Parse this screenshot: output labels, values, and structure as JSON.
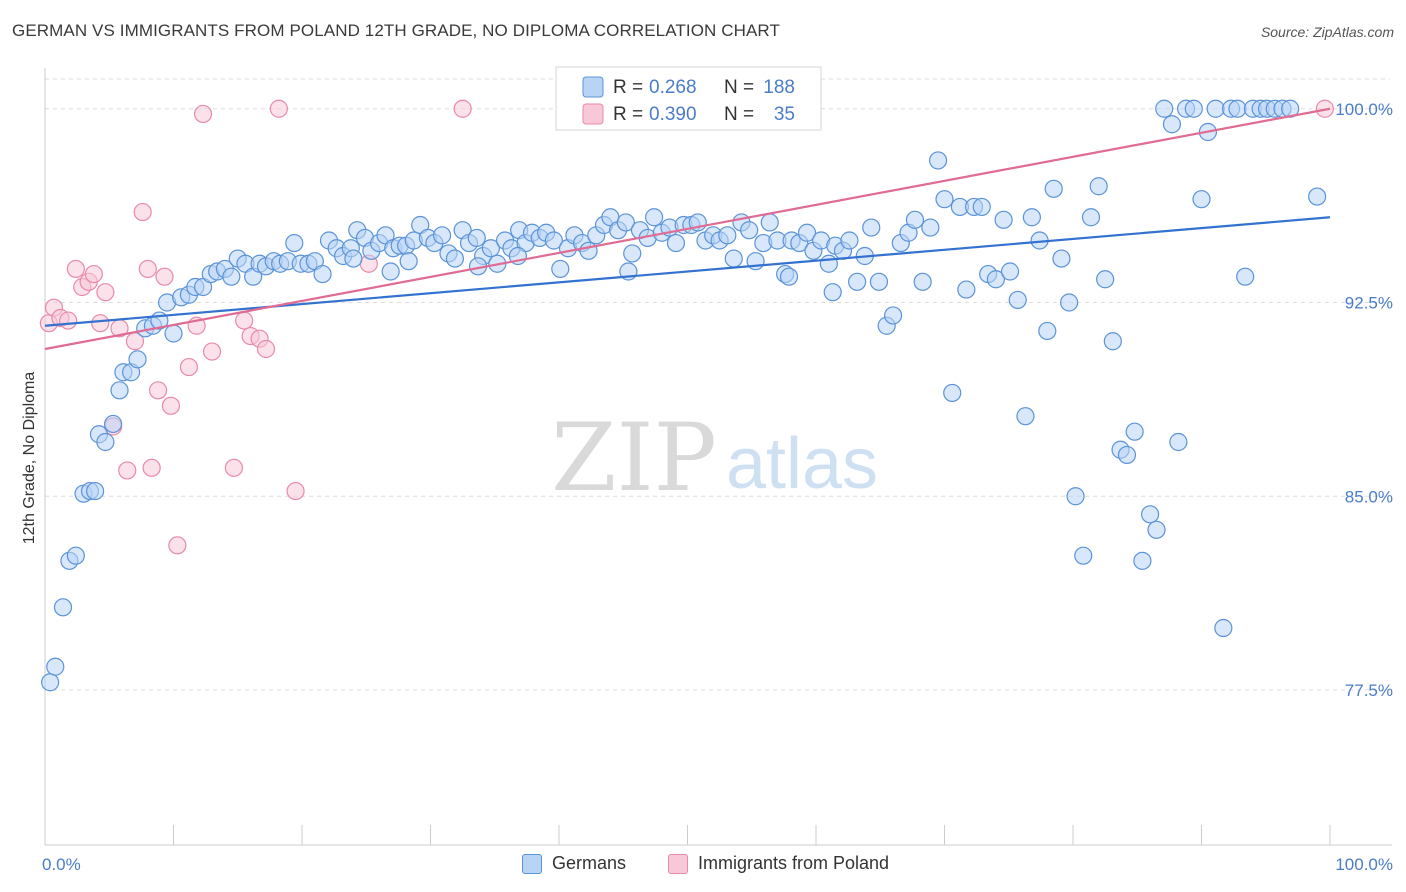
{
  "title": "GERMAN VS IMMIGRANTS FROM POLAND 12TH GRADE, NO DIPLOMA CORRELATION CHART",
  "source": "Source: ZipAtlas.com",
  "watermark": {
    "zip": "ZIP",
    "atlas": "atlas"
  },
  "colors": {
    "blue_fill": "#b8d4f5",
    "blue_stroke": "#5b93d8",
    "blue_line": "#3472d0",
    "pink_fill": "#f8c8d8",
    "pink_stroke": "#e88aa8",
    "pink_line": "#e06b93",
    "tick_label": "#4a7cc8",
    "grid": "#dddddd"
  },
  "legend": {
    "rows": [
      {
        "r_label": "R =",
        "r_value": "0.268",
        "n_label": "N =",
        "n_value": "188",
        "series": "blue"
      },
      {
        "r_label": "R =",
        "r_value": "0.390",
        "n_label": "N =",
        "n_value": "35",
        "series": "pink"
      }
    ]
  },
  "chart_data": {
    "type": "scatter",
    "title": "GERMAN VS IMMIGRANTS FROM POLAND 12TH GRADE, NO DIPLOMA CORRELATION CHART",
    "xlabel": "",
    "ylabel": "12th Grade, No Diploma",
    "xlim": [
      0,
      100
    ],
    "ylim": [
      71.5,
      101.5
    ],
    "x_tick_labels": [
      "0.0%",
      "100.0%"
    ],
    "y_ticks": [
      77.5,
      85.0,
      92.5,
      100.0
    ],
    "y_tick_labels": [
      "77.5%",
      "85.0%",
      "92.5%",
      "100.0%"
    ],
    "grid": true,
    "legend_position": "top-center",
    "series": [
      {
        "name": "Germans",
        "color": "blue",
        "trend": {
          "x": [
            0,
            100
          ],
          "y": [
            91.6,
            95.8
          ]
        },
        "points": [
          [
            0.4,
            77.8
          ],
          [
            0.8,
            78.4
          ],
          [
            1.4,
            80.7
          ],
          [
            1.9,
            82.5
          ],
          [
            2.4,
            82.7
          ],
          [
            3.0,
            85.1
          ],
          [
            3.5,
            85.2
          ],
          [
            3.9,
            85.2
          ],
          [
            4.2,
            87.4
          ],
          [
            4.7,
            87.1
          ],
          [
            5.3,
            87.8
          ],
          [
            5.8,
            89.1
          ],
          [
            6.1,
            89.8
          ],
          [
            6.7,
            89.8
          ],
          [
            7.2,
            90.3
          ],
          [
            7.8,
            91.5
          ],
          [
            8.4,
            91.6
          ],
          [
            8.9,
            91.8
          ],
          [
            9.5,
            92.5
          ],
          [
            10.0,
            91.3
          ],
          [
            10.6,
            92.7
          ],
          [
            11.2,
            92.8
          ],
          [
            11.7,
            93.1
          ],
          [
            12.3,
            93.1
          ],
          [
            12.9,
            93.6
          ],
          [
            13.4,
            93.7
          ],
          [
            14.0,
            93.8
          ],
          [
            14.5,
            93.5
          ],
          [
            15.0,
            94.2
          ],
          [
            15.6,
            94.0
          ],
          [
            16.2,
            93.5
          ],
          [
            16.7,
            94.0
          ],
          [
            17.2,
            93.9
          ],
          [
            17.8,
            94.1
          ],
          [
            18.3,
            94.0
          ],
          [
            18.9,
            94.1
          ],
          [
            19.4,
            94.8
          ],
          [
            19.9,
            94.0
          ],
          [
            20.5,
            94.0
          ],
          [
            21.0,
            94.1
          ],
          [
            21.6,
            93.6
          ],
          [
            22.1,
            94.9
          ],
          [
            22.7,
            94.6
          ],
          [
            23.2,
            94.3
          ],
          [
            23.8,
            94.6
          ],
          [
            24.3,
            95.3
          ],
          [
            24.9,
            95.0
          ],
          [
            25.4,
            94.5
          ],
          [
            26.0,
            94.8
          ],
          [
            26.5,
            95.1
          ],
          [
            27.1,
            94.6
          ],
          [
            27.6,
            94.7
          ],
          [
            28.1,
            94.7
          ],
          [
            28.7,
            94.9
          ],
          [
            29.2,
            95.5
          ],
          [
            29.8,
            95.0
          ],
          [
            30.3,
            94.8
          ],
          [
            30.9,
            95.1
          ],
          [
            31.4,
            94.4
          ],
          [
            31.9,
            94.2
          ],
          [
            32.5,
            95.3
          ],
          [
            33.0,
            94.8
          ],
          [
            33.6,
            95.0
          ],
          [
            34.1,
            94.3
          ],
          [
            34.7,
            94.6
          ],
          [
            35.2,
            94.0
          ],
          [
            35.8,
            94.9
          ],
          [
            36.3,
            94.6
          ],
          [
            36.9,
            95.3
          ],
          [
            37.4,
            94.8
          ],
          [
            37.9,
            95.2
          ],
          [
            38.5,
            95.0
          ],
          [
            39.0,
            95.2
          ],
          [
            39.6,
            94.9
          ],
          [
            40.1,
            93.8
          ],
          [
            40.7,
            94.6
          ],
          [
            41.2,
            95.1
          ],
          [
            41.8,
            94.8
          ],
          [
            42.3,
            94.5
          ],
          [
            42.9,
            95.1
          ],
          [
            43.5,
            95.5
          ],
          [
            44.0,
            95.8
          ],
          [
            44.6,
            95.3
          ],
          [
            45.2,
            95.6
          ],
          [
            45.7,
            94.4
          ],
          [
            46.3,
            95.3
          ],
          [
            46.9,
            95.0
          ],
          [
            47.4,
            95.8
          ],
          [
            48.0,
            95.2
          ],
          [
            48.6,
            95.4
          ],
          [
            49.1,
            94.8
          ],
          [
            49.7,
            95.5
          ],
          [
            50.3,
            95.5
          ],
          [
            50.8,
            95.6
          ],
          [
            51.4,
            94.9
          ],
          [
            52.0,
            95.1
          ],
          [
            52.5,
            94.9
          ],
          [
            53.1,
            95.1
          ],
          [
            53.6,
            94.2
          ],
          [
            54.2,
            95.6
          ],
          [
            54.8,
            95.3
          ],
          [
            55.3,
            94.1
          ],
          [
            55.9,
            94.8
          ],
          [
            56.4,
            95.6
          ],
          [
            57.0,
            94.9
          ],
          [
            57.6,
            93.6
          ],
          [
            58.1,
            94.9
          ],
          [
            58.7,
            94.8
          ],
          [
            59.3,
            95.2
          ],
          [
            59.8,
            94.5
          ],
          [
            60.4,
            94.9
          ],
          [
            61.0,
            94.0
          ],
          [
            61.5,
            94.7
          ],
          [
            62.1,
            94.5
          ],
          [
            62.6,
            94.9
          ],
          [
            63.2,
            93.3
          ],
          [
            63.8,
            94.3
          ],
          [
            64.3,
            95.4
          ],
          [
            64.9,
            93.3
          ],
          [
            65.5,
            91.6
          ],
          [
            66.0,
            92.0
          ],
          [
            66.6,
            94.8
          ],
          [
            67.2,
            95.2
          ],
          [
            67.7,
            95.7
          ],
          [
            68.3,
            93.3
          ],
          [
            68.9,
            95.4
          ],
          [
            69.5,
            98.0
          ],
          [
            70.0,
            96.5
          ],
          [
            70.6,
            89.0
          ],
          [
            71.2,
            96.2
          ],
          [
            71.7,
            93.0
          ],
          [
            72.3,
            96.2
          ],
          [
            72.9,
            96.2
          ],
          [
            73.4,
            93.6
          ],
          [
            74.0,
            93.4
          ],
          [
            74.6,
            95.7
          ],
          [
            75.1,
            93.7
          ],
          [
            75.7,
            92.6
          ],
          [
            76.3,
            88.1
          ],
          [
            76.8,
            95.8
          ],
          [
            77.4,
            94.9
          ],
          [
            78.0,
            91.4
          ],
          [
            78.5,
            96.9
          ],
          [
            79.1,
            94.2
          ],
          [
            79.7,
            92.5
          ],
          [
            80.2,
            85.0
          ],
          [
            80.8,
            82.7
          ],
          [
            81.4,
            95.8
          ],
          [
            82.0,
            97.0
          ],
          [
            82.5,
            93.4
          ],
          [
            83.1,
            91.0
          ],
          [
            83.7,
            86.8
          ],
          [
            84.2,
            86.6
          ],
          [
            84.8,
            87.5
          ],
          [
            85.4,
            82.5
          ],
          [
            86.0,
            84.3
          ],
          [
            86.5,
            83.7
          ],
          [
            87.1,
            100.0
          ],
          [
            87.7,
            99.4
          ],
          [
            88.2,
            87.1
          ],
          [
            88.8,
            100.0
          ],
          [
            89.4,
            100.0
          ],
          [
            90.0,
            96.5
          ],
          [
            90.5,
            99.1
          ],
          [
            91.1,
            100.0
          ],
          [
            91.7,
            79.9
          ],
          [
            92.3,
            100.0
          ],
          [
            92.8,
            100.0
          ],
          [
            93.4,
            93.5
          ],
          [
            94.0,
            100.0
          ],
          [
            94.6,
            100.0
          ],
          [
            95.1,
            100.0
          ],
          [
            95.7,
            100.0
          ],
          [
            96.3,
            100.0
          ],
          [
            96.9,
            100.0
          ],
          [
            99.0,
            96.6
          ],
          [
            57.9,
            93.5
          ],
          [
            61.3,
            92.9
          ],
          [
            45.4,
            93.7
          ],
          [
            36.8,
            94.3
          ],
          [
            33.7,
            93.9
          ],
          [
            28.3,
            94.1
          ],
          [
            26.9,
            93.7
          ],
          [
            24.0,
            94.2
          ]
        ]
      },
      {
        "name": "Immigrants from Poland",
        "color": "pink",
        "trend": {
          "x": [
            0,
            100
          ],
          "y": [
            90.7,
            100.0
          ]
        },
        "points": [
          [
            0.3,
            91.7
          ],
          [
            0.7,
            92.3
          ],
          [
            1.2,
            91.9
          ],
          [
            1.8,
            91.8
          ],
          [
            2.4,
            93.8
          ],
          [
            2.9,
            93.1
          ],
          [
            3.4,
            93.3
          ],
          [
            3.8,
            93.6
          ],
          [
            4.3,
            91.7
          ],
          [
            4.7,
            92.9
          ],
          [
            5.3,
            87.7
          ],
          [
            5.8,
            91.5
          ],
          [
            6.4,
            86.0
          ],
          [
            7.0,
            91.0
          ],
          [
            7.6,
            96.0
          ],
          [
            8.0,
            93.8
          ],
          [
            8.3,
            86.1
          ],
          [
            8.8,
            89.1
          ],
          [
            9.3,
            93.5
          ],
          [
            9.8,
            88.5
          ],
          [
            10.3,
            83.1
          ],
          [
            11.2,
            90.0
          ],
          [
            11.8,
            91.6
          ],
          [
            12.3,
            99.8
          ],
          [
            13.0,
            90.6
          ],
          [
            14.7,
            86.1
          ],
          [
            15.5,
            91.8
          ],
          [
            16.0,
            91.2
          ],
          [
            16.7,
            91.1
          ],
          [
            17.2,
            90.7
          ],
          [
            18.2,
            100.0
          ],
          [
            19.5,
            85.2
          ],
          [
            25.2,
            94.0
          ],
          [
            32.5,
            100.0
          ],
          [
            99.6,
            100.0
          ]
        ]
      }
    ]
  },
  "bottom_legend": [
    {
      "label": "Germans",
      "series": "blue"
    },
    {
      "label": "Immigrants from Poland",
      "series": "pink"
    }
  ]
}
